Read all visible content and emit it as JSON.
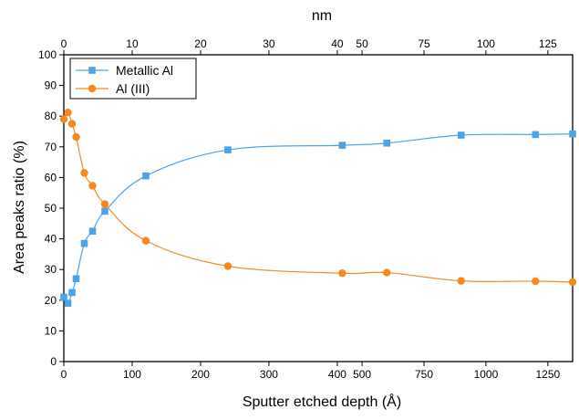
{
  "chart_data": {
    "type": "line",
    "title": "",
    "xlabel": "Sputter etched depth (Å)",
    "ylabel": "Area peaks ratio (%)",
    "x2label": "nm",
    "xlim": [
      0,
      1350
    ],
    "ylim": [
      0,
      100
    ],
    "x2lim": [
      0,
      135
    ],
    "x_ticks": [
      0,
      250,
      500,
      750,
      1000,
      1250
    ],
    "x_tick_labels": [
      "0",
      "250",
      "500",
      "750",
      "1000",
      "1250"
    ],
    "x_ticks_extra": [
      0,
      100,
      200,
      300,
      400
    ],
    "x_tick_labels_extra": [
      "0",
      "100",
      "200",
      "300",
      "400"
    ],
    "x2_ticks": [
      0,
      10,
      20,
      30,
      40,
      50,
      75,
      100,
      125
    ],
    "x2_tick_labels": [
      "0",
      "10",
      "20",
      "30",
      "40",
      "50",
      "75",
      "100",
      "125"
    ],
    "y_ticks": [
      0,
      10,
      20,
      30,
      40,
      50,
      60,
      70,
      80,
      90,
      100
    ],
    "y_tick_labels": [
      "0",
      "10",
      "20",
      "30",
      "40",
      "50",
      "60",
      "70",
      "80",
      "90",
      "100"
    ],
    "grid": false,
    "legend_position": "top-left",
    "series": [
      {
        "name": "Metallic Al",
        "color": "#4da3e8",
        "marker": "square",
        "points": [
          [
            0,
            21
          ],
          [
            6,
            19
          ],
          [
            12,
            22.5
          ],
          [
            18,
            27
          ],
          [
            30,
            38.5
          ],
          [
            42,
            42.5
          ],
          [
            60,
            49
          ],
          [
            120,
            60.5
          ],
          [
            240,
            69
          ],
          [
            420,
            70.5
          ],
          [
            600,
            71.2
          ],
          [
            900,
            73.8
          ],
          [
            1200,
            74
          ],
          [
            1350,
            74.2
          ]
        ]
      },
      {
        "name": "Al (III)",
        "color": "#f5891f",
        "marker": "circle",
        "points": [
          [
            0,
            79
          ],
          [
            6,
            81.2
          ],
          [
            12,
            77.5
          ],
          [
            18,
            73.2
          ],
          [
            30,
            61.5
          ],
          [
            42,
            57.3
          ],
          [
            60,
            51.3
          ],
          [
            120,
            39.4
          ],
          [
            240,
            31.1
          ],
          [
            420,
            28.8
          ],
          [
            600,
            29
          ],
          [
            900,
            26.3
          ],
          [
            1200,
            26.2
          ],
          [
            1350,
            25.9
          ]
        ]
      }
    ]
  }
}
